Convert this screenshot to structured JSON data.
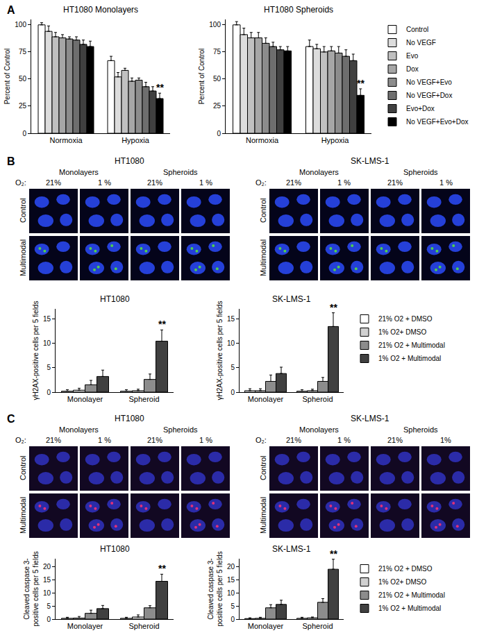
{
  "chart_data": [
    {
      "type": "bar",
      "title": "HT1080 Monolayers",
      "y_label": "Percent of Control",
      "categories": [
        "Normoxia",
        "Hypoxia"
      ],
      "series": [
        {
          "name": "Control",
          "color": "#ffffff",
          "values": [
            100,
            67
          ],
          "errors": [
            2,
            4
          ]
        },
        {
          "name": "No VEGF",
          "color": "#dcdcdc",
          "values": [
            94,
            52
          ],
          "errors": [
            5,
            4
          ]
        },
        {
          "name": "Evo",
          "color": "#c0c0c0",
          "values": [
            89,
            58
          ],
          "errors": [
            4,
            2
          ]
        },
        {
          "name": "Dox",
          "color": "#a6a6a6",
          "values": [
            88,
            48
          ],
          "errors": [
            3,
            3
          ]
        },
        {
          "name": "No VEGF+Evo",
          "color": "#8c8c8c",
          "values": [
            87,
            49
          ],
          "errors": [
            2,
            2
          ]
        },
        {
          "name": "No VEGF+Dox",
          "color": "#6e6e6e",
          "values": [
            86,
            43
          ],
          "errors": [
            3,
            4
          ]
        },
        {
          "name": "Evo+Dox",
          "color": "#404040",
          "values": [
            82,
            39
          ],
          "errors": [
            4,
            4
          ]
        },
        {
          "name": "No VEGF+Evo+Dox",
          "color": "#000000",
          "values": [
            80,
            32
          ],
          "errors": [
            5,
            5
          ]
        }
      ],
      "ylim": [
        0,
        105
      ],
      "yticks": [
        0,
        25,
        50,
        75,
        100
      ],
      "grid": false,
      "annotations": [
        {
          "text": "**",
          "category": "Hypoxia",
          "series": "No VEGF+Evo+Dox"
        }
      ]
    },
    {
      "type": "bar",
      "title": "HT1080 Spheroids",
      "y_label": "Percent of Control",
      "categories": [
        "Normoxia",
        "Hypoxia"
      ],
      "series": [
        {
          "name": "Control",
          "color": "#ffffff",
          "values": [
            100,
            80
          ],
          "errors": [
            3,
            6
          ]
        },
        {
          "name": "No VEGF",
          "color": "#dcdcdc",
          "values": [
            91,
            78
          ],
          "errors": [
            6,
            4
          ]
        },
        {
          "name": "Evo",
          "color": "#c0c0c0",
          "values": [
            88,
            75
          ],
          "errors": [
            5,
            5
          ]
        },
        {
          "name": "Dox",
          "color": "#a6a6a6",
          "values": [
            88,
            76
          ],
          "errors": [
            5,
            4
          ]
        },
        {
          "name": "No VEGF+Evo",
          "color": "#8c8c8c",
          "values": [
            83,
            74
          ],
          "errors": [
            5,
            6
          ]
        },
        {
          "name": "No VEGF+Dox",
          "color": "#6e6e6e",
          "values": [
            80,
            71
          ],
          "errors": [
            4,
            6
          ]
        },
        {
          "name": "Evo+Dox",
          "color": "#404040",
          "values": [
            77,
            67
          ],
          "errors": [
            3,
            6
          ]
        },
        {
          "name": "No VEGF+Evo+Dox",
          "color": "#000000",
          "values": [
            76,
            35
          ],
          "errors": [
            4,
            6
          ]
        }
      ],
      "ylim": [
        0,
        105
      ],
      "yticks": [
        0,
        25,
        50,
        75,
        100
      ],
      "grid": false,
      "legend": "right",
      "annotations": [
        {
          "text": "**",
          "category": "Hypoxia",
          "series": "No VEGF+Evo+Dox"
        }
      ]
    },
    {
      "type": "bar",
      "title": "HT1080",
      "y_label": "γH2AX-positive cells per 5 fields",
      "categories": [
        "Monolayer",
        "Spheroid"
      ],
      "series": [
        {
          "name": "21% O2 + DMSO",
          "color": "#ffffff",
          "values": [
            0.2,
            0.2
          ],
          "errors": [
            0.3,
            0.3
          ]
        },
        {
          "name": "1% O2+ DMSO",
          "color": "#d0d0d0",
          "values": [
            0.4,
            0.3
          ],
          "errors": [
            0.4,
            0.3
          ]
        },
        {
          "name": "21% O2 + Multimodal",
          "color": "#8c8c8c",
          "values": [
            1.5,
            2.6
          ],
          "errors": [
            0.9,
            1.1
          ]
        },
        {
          "name": "1% O2 + Multimodal",
          "color": "#404040",
          "values": [
            3.2,
            10.4
          ],
          "errors": [
            1.3,
            2.3
          ]
        }
      ],
      "ylim": [
        0,
        17
      ],
      "yticks": [
        0,
        5,
        10,
        15
      ],
      "grid": false,
      "annotations": [
        {
          "text": "**",
          "category": "Spheroid",
          "series": "1% O2 + Multimodal"
        }
      ]
    },
    {
      "type": "bar",
      "title": "SK-LMS-1",
      "y_label": "γH2AX-positive cells per 5 fields",
      "categories": [
        "Monolayer",
        "Spheroid"
      ],
      "series": [
        {
          "name": "21% O2 + DMSO",
          "color": "#ffffff",
          "values": [
            0.3,
            0.2
          ],
          "errors": [
            0.4,
            0.3
          ]
        },
        {
          "name": "1% O2+ DMSO",
          "color": "#d0d0d0",
          "values": [
            0.3,
            0.3
          ],
          "errors": [
            0.4,
            0.3
          ]
        },
        {
          "name": "21% O2 + Multimodal",
          "color": "#8c8c8c",
          "values": [
            2.2,
            2.2
          ],
          "errors": [
            1.3,
            0.8
          ]
        },
        {
          "name": "1% O2 + Multimodal",
          "color": "#404040",
          "values": [
            3.8,
            13.4
          ],
          "errors": [
            1.3,
            2.8
          ]
        }
      ],
      "ylim": [
        0,
        17
      ],
      "yticks": [
        0,
        5,
        10,
        15
      ],
      "grid": false,
      "legend": "right",
      "annotations": [
        {
          "text": "**",
          "category": "Spheroid",
          "series": "1% O2 + Multimodal"
        }
      ]
    },
    {
      "type": "bar",
      "title": "HT1080",
      "y_label": "Cleaved caspase 3-\npositive cells per 5 fields",
      "categories": [
        "Monolayer",
        "Spheroid"
      ],
      "series": [
        {
          "name": "21% O2 + DMSO",
          "color": "#ffffff",
          "values": [
            0.3,
            0.3
          ],
          "errors": [
            0.4,
            0.4
          ]
        },
        {
          "name": "1% O2+ DMSO",
          "color": "#d0d0d0",
          "values": [
            0.4,
            0.8
          ],
          "errors": [
            0.6,
            0.8
          ]
        },
        {
          "name": "21% O2 + Multimodal",
          "color": "#8c8c8c",
          "values": [
            2.2,
            4.3
          ],
          "errors": [
            1.2,
            0.8
          ]
        },
        {
          "name": "1% O2 + Multimodal",
          "color": "#404040",
          "values": [
            4.0,
            14.4
          ],
          "errors": [
            1.2,
            2.7
          ]
        }
      ],
      "ylim": [
        0,
        23
      ],
      "yticks": [
        0,
        5,
        10,
        15,
        20
      ],
      "grid": false,
      "annotations": [
        {
          "text": "**",
          "category": "Spheroid",
          "series": "1% O2 + Multimodal"
        }
      ]
    },
    {
      "type": "bar",
      "title": "SK-LMS-1",
      "y_label": "Cleaved caspase 3-\npositive cells per 5 fields",
      "categories": [
        "Monolayer",
        "Spheroid"
      ],
      "series": [
        {
          "name": "21% O2 + DMSO",
          "color": "#ffffff",
          "values": [
            0.2,
            0.3
          ],
          "errors": [
            0.3,
            0.4
          ]
        },
        {
          "name": "1% O2+ DMSO",
          "color": "#d0d0d0",
          "values": [
            0.3,
            0.5
          ],
          "errors": [
            0.4,
            0.3
          ]
        },
        {
          "name": "21% O2 + Multimodal",
          "color": "#8c8c8c",
          "values": [
            4.3,
            6.4
          ],
          "errors": [
            1.2,
            1.4
          ]
        },
        {
          "name": "1% O2 + Multimodal",
          "color": "#404040",
          "values": [
            5.6,
            19.0
          ],
          "errors": [
            1.6,
            3.8
          ]
        }
      ],
      "ylim": [
        0,
        23
      ],
      "yticks": [
        0,
        5,
        10,
        15,
        20
      ],
      "grid": false,
      "legend": "right",
      "annotations": [
        {
          "text": "**",
          "category": "Spheroid",
          "series": "1% O2 + Multimodal"
        }
      ]
    }
  ],
  "figure": {
    "panel_labels": [
      "A",
      "B",
      "C"
    ],
    "image_panels": [
      {
        "title": "HT1080",
        "groups": [
          "Monolayers",
          "Spheroids"
        ],
        "oxygen_label": "O₂:",
        "columns": [
          "21%",
          "1 %",
          "21%",
          "1 %"
        ],
        "rows": [
          "Control",
          "Multimodal"
        ]
      },
      {
        "title": "SK-LMS-1",
        "groups": [
          "Monolayers",
          "Spheroids"
        ],
        "oxygen_label": "O₂:",
        "columns": [
          "21%",
          "1 %",
          "21%",
          "1 %"
        ],
        "rows": [
          "Control",
          "Multimodal"
        ]
      },
      {
        "title": "HT1080",
        "groups": [
          "Monolayers",
          "Spheroids"
        ],
        "oxygen_label": "O₂:",
        "columns": [
          "21%",
          "1 %",
          "21%",
          "1 %"
        ],
        "rows": [
          "Control",
          "Multimodal"
        ]
      },
      {
        "title": "SK-LMS-1",
        "groups": [
          "Monolayers",
          "Spheroids"
        ],
        "oxygen_label": "O₂:",
        "columns": [
          "21%",
          "1 %",
          "21%",
          "1%"
        ],
        "rows": [
          "Control",
          "Multimodal"
        ]
      }
    ]
  }
}
